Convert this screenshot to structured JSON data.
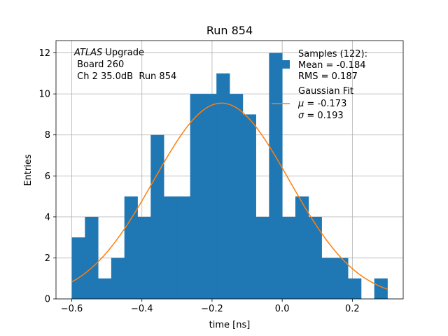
{
  "chart_data": {
    "type": "bar",
    "title": "Run 854",
    "xlabel": "time [ns]",
    "ylabel": "Entries",
    "xlim": [
      -0.645,
      0.345
    ],
    "ylim": [
      0,
      12.6
    ],
    "grid": true,
    "bin_width": 0.0375,
    "bin_left_edges": [
      -0.6,
      -0.5625,
      -0.525,
      -0.4875,
      -0.45,
      -0.4125,
      -0.375,
      -0.3375,
      -0.3,
      -0.2625,
      -0.225,
      -0.1875,
      -0.15,
      -0.1125,
      -0.075,
      -0.0375,
      0.0,
      0.0375,
      0.075,
      0.1125,
      0.15,
      0.1875,
      0.225,
      0.2625
    ],
    "counts": [
      3,
      4,
      1,
      2,
      5,
      4,
      8,
      5,
      5,
      10,
      10,
      11,
      10,
      9,
      4,
      12,
      4,
      5,
      4,
      2,
      2,
      1,
      0,
      1
    ],
    "x_ticks": [
      -0.6,
      -0.4,
      -0.2,
      0.0,
      0.2
    ],
    "x_tick_labels": [
      "−0.6",
      "−0.4",
      "−0.2",
      "0.0",
      "0.2"
    ],
    "y_ticks": [
      0,
      2,
      4,
      6,
      8,
      10,
      12
    ],
    "y_tick_labels": [
      "0",
      "2",
      "4",
      "6",
      "8",
      "10",
      "12"
    ],
    "fit": {
      "type": "gaussian",
      "mu": -0.173,
      "sigma": 0.193,
      "amplitude": 9.55,
      "x_range": [
        -0.6,
        0.3
      ]
    },
    "annotation": {
      "italic": "ATLAS",
      "line1_rest": " Upgrade",
      "line2": " Board 260",
      "line3": " Ch 2 35.0dB  Run 854"
    },
    "legend": {
      "placement": "top-right",
      "samples": [
        "Samples (122):",
        "Mean = -0.184",
        "RMS = 0.187"
      ],
      "fit_title": "Gaussian Fit",
      "mu_symbol": "μ",
      "mu_value": " = -0.173",
      "sigma_symbol": "σ",
      "sigma_value": " = 0.193"
    },
    "colors": {
      "bars": "#1f77b4",
      "fit": "#ff7f0e",
      "grid": "#b0b0b0"
    }
  }
}
